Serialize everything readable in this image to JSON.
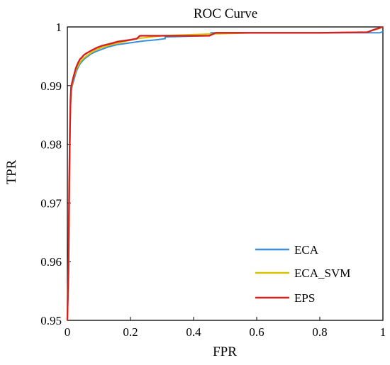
{
  "chart_data": {
    "type": "line",
    "title": "ROC Curve",
    "xlabel": "FPR",
    "ylabel": "TPR",
    "xlim": [
      0,
      1
    ],
    "ylim": [
      0.95,
      1
    ],
    "x_ticks": [
      {
        "value": 0,
        "label": "0"
      },
      {
        "value": 0.2,
        "label": "0.2"
      },
      {
        "value": 0.4,
        "label": "0.4"
      },
      {
        "value": 0.6,
        "label": "0.6"
      },
      {
        "value": 0.8,
        "label": "0.8"
      },
      {
        "value": 1,
        "label": "1"
      }
    ],
    "y_ticks": [
      {
        "value": 0.95,
        "label": "0.95"
      },
      {
        "value": 0.96,
        "label": "0.96"
      },
      {
        "value": 0.97,
        "label": "0.97"
      },
      {
        "value": 0.98,
        "label": "0.98"
      },
      {
        "value": 0.99,
        "label": "0.99"
      },
      {
        "value": 1,
        "label": "1"
      }
    ],
    "grid": false,
    "legend_position": "bottom-right",
    "series": [
      {
        "name": "ECA",
        "color": "#3a8fd9",
        "x": [
          0.0,
          0.004,
          0.006,
          0.008,
          0.01,
          0.012,
          0.015,
          0.018,
          0.022,
          0.026,
          0.03,
          0.035,
          0.04,
          0.048,
          0.055,
          0.065,
          0.075,
          0.09,
          0.11,
          0.13,
          0.16,
          0.2,
          0.24,
          0.28,
          0.31,
          0.31,
          0.45,
          0.455,
          0.6,
          0.8,
          0.95,
          0.99,
          1.0
        ],
        "y": [
          0.95,
          0.958,
          0.97,
          0.98,
          0.9865,
          0.989,
          0.9898,
          0.9905,
          0.9912,
          0.992,
          0.9926,
          0.9932,
          0.9937,
          0.9942,
          0.9946,
          0.995,
          0.9954,
          0.9958,
          0.9962,
          0.9966,
          0.997,
          0.9973,
          0.9976,
          0.9978,
          0.998,
          0.9983,
          0.9985,
          0.999,
          0.999,
          0.999,
          0.999,
          0.999,
          0.9992
        ]
      },
      {
        "name": "ECA_SVM",
        "color": "#d4c400",
        "x": [
          0.0,
          0.004,
          0.006,
          0.008,
          0.01,
          0.013,
          0.016,
          0.02,
          0.025,
          0.03,
          0.036,
          0.043,
          0.052,
          0.062,
          0.075,
          0.09,
          0.11,
          0.14,
          0.18,
          0.22,
          0.3,
          0.45,
          0.6,
          0.8,
          0.95,
          0.98,
          1.0
        ],
        "y": [
          0.95,
          0.96,
          0.972,
          0.981,
          0.987,
          0.9895,
          0.9905,
          0.9914,
          0.9922,
          0.993,
          0.9936,
          0.9942,
          0.9947,
          0.9951,
          0.9956,
          0.9961,
          0.9965,
          0.997,
          0.9975,
          0.998,
          0.9985,
          0.9988,
          0.999,
          0.999,
          0.9991,
          0.9996,
          1.0
        ]
      },
      {
        "name": "EPS",
        "color": "#d62020",
        "x": [
          0.0,
          0.004,
          0.006,
          0.008,
          0.01,
          0.012,
          0.015,
          0.018,
          0.022,
          0.026,
          0.03,
          0.035,
          0.04,
          0.046,
          0.052,
          0.06,
          0.07,
          0.08,
          0.095,
          0.11,
          0.14,
          0.16,
          0.2,
          0.22,
          0.23,
          0.3,
          0.45,
          0.47,
          0.6,
          0.8,
          0.95,
          0.97,
          1.0
        ],
        "y": [
          0.95,
          0.962,
          0.974,
          0.982,
          0.9875,
          0.9898,
          0.9905,
          0.9912,
          0.992,
          0.9928,
          0.9934,
          0.994,
          0.9945,
          0.9948,
          0.9952,
          0.9955,
          0.9958,
          0.9961,
          0.9965,
          0.9968,
          0.9972,
          0.9975,
          0.9978,
          0.998,
          0.9985,
          0.9985,
          0.9985,
          0.999,
          0.999,
          0.999,
          0.9991,
          0.9995,
          1.0
        ]
      }
    ]
  }
}
